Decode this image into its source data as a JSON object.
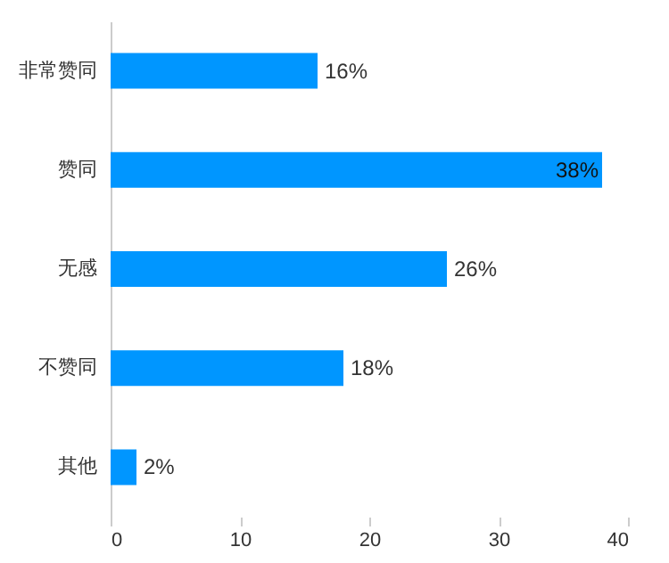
{
  "chart_data": {
    "type": "bar",
    "orientation": "horizontal",
    "categories": [
      "非常赞同",
      "赞同",
      "无感",
      "不赞同",
      "其他"
    ],
    "values": [
      16,
      38,
      26,
      18,
      2
    ],
    "value_labels": [
      "16%",
      "38%",
      "26%",
      "18%",
      "2%"
    ],
    "color": "#0096ff",
    "xlim": [
      0,
      40
    ],
    "xticks": [
      0,
      10,
      20,
      30,
      40
    ],
    "grid": false
  }
}
